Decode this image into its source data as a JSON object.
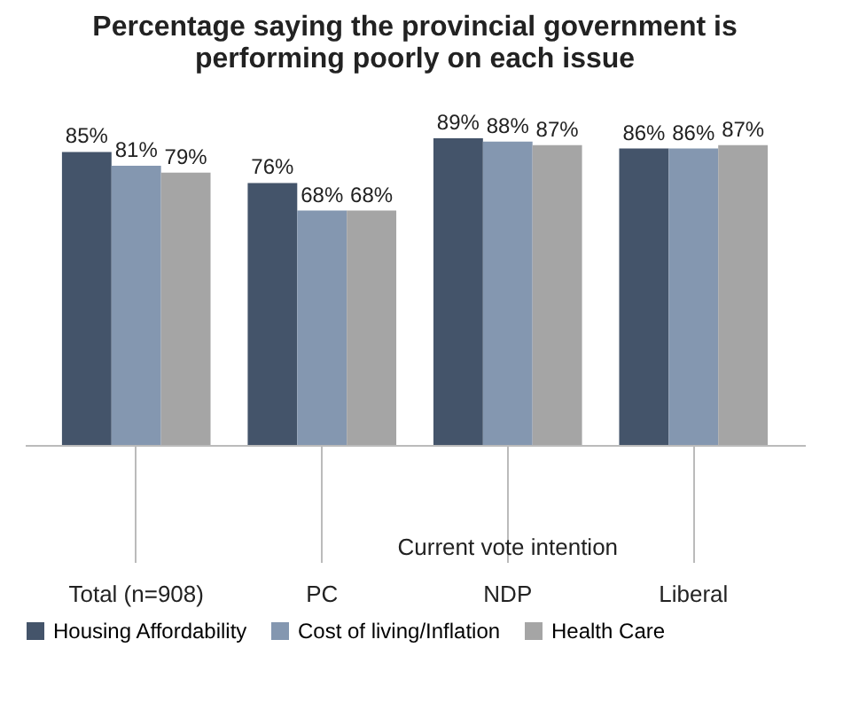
{
  "chart_data": {
    "type": "bar",
    "title": "Percentage saying the provincial government is performing poorly on each issue",
    "categories": [
      "Total (n=908)",
      "PC",
      "NDP",
      "Liberal"
    ],
    "annotations": [
      "Current vote intention"
    ],
    "series": [
      {
        "name": "Housing Affordability",
        "color": "#44546a",
        "values": [
          85,
          76,
          89,
          86
        ],
        "value_labels": [
          "85%",
          "76%",
          "89%",
          "86%"
        ]
      },
      {
        "name": "Cost of living/Inflation",
        "color": "#8497b0",
        "values": [
          81,
          68,
          88,
          86
        ],
        "value_labels": [
          "81%",
          "68%",
          "88%",
          "86%"
        ]
      },
      {
        "name": "Health Care",
        "color": "#a5a5a5",
        "values": [
          79,
          68,
          87,
          87
        ],
        "value_labels": [
          "79%",
          "68%",
          "87%",
          "87%"
        ]
      }
    ],
    "legend": "bottom",
    "grid": false
  }
}
